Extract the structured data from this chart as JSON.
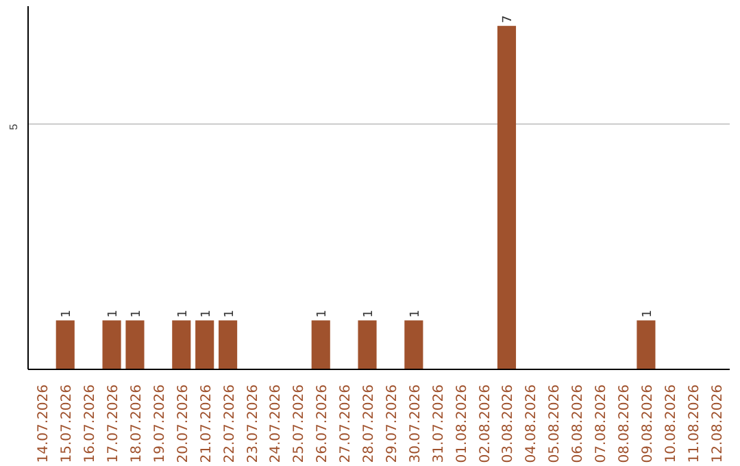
{
  "chart_data": {
    "type": "bar",
    "categories": [
      "14.07.2026",
      "15.07.2026",
      "16.07.2026",
      "17.07.2026",
      "18.07.2026",
      "19.07.2026",
      "20.07.2026",
      "21.07.2026",
      "22.07.2026",
      "23.07.2026",
      "24.07.2026",
      "25.07.2026",
      "26.07.2026",
      "27.07.2026",
      "28.07.2026",
      "29.07.2026",
      "30.07.2026",
      "31.07.2026",
      "01.08.2026",
      "02.08.2026",
      "03.08.2026",
      "04.08.2026",
      "05.08.2026",
      "06.08.2026",
      "07.08.2026",
      "08.08.2026",
      "09.08.2026",
      "10.08.2026",
      "11.08.2026",
      "12.08.2026"
    ],
    "values": [
      0,
      1,
      0,
      1,
      1,
      0,
      1,
      1,
      1,
      0,
      0,
      0,
      1,
      0,
      1,
      0,
      1,
      0,
      0,
      0,
      7,
      0,
      0,
      0,
      0,
      0,
      1,
      0,
      0,
      0
    ],
    "value_labels": [
      null,
      "1",
      null,
      "1",
      "1",
      null,
      "1",
      "1",
      "1",
      null,
      null,
      null,
      "1",
      null,
      "1",
      null,
      "1",
      null,
      null,
      null,
      "7",
      null,
      null,
      null,
      null,
      null,
      "1",
      null,
      null,
      null
    ],
    "color": "#a0522d",
    "ylim": [
      0,
      7.4
    ],
    "yticks": [
      5
    ],
    "grid": "y"
  }
}
